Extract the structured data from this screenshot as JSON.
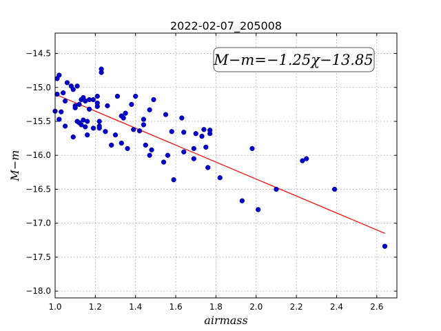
{
  "chart_data": {
    "type": "scatter",
    "title": "2022-02-07_205008",
    "xlabel": "airmass",
    "ylabel": "M−m",
    "xlim": [
      1.0,
      2.7
    ],
    "ylim": [
      -18.1,
      -14.2
    ],
    "x_ticks": [
      1.0,
      1.2,
      1.4,
      1.6,
      1.8,
      2.0,
      2.2,
      2.4,
      2.6
    ],
    "x_tick_labels": [
      "1.0",
      "1.2",
      "1.4",
      "1.6",
      "1.8",
      "2.0",
      "2.2",
      "2.4",
      "2.6"
    ],
    "y_ticks": [
      -14.5,
      -15.0,
      -15.5,
      -16.0,
      -16.5,
      -17.0,
      -17.5,
      -18.0
    ],
    "y_tick_labels": [
      "−14.5",
      "−15.0",
      "−15.5",
      "−16.0",
      "−16.5",
      "−17.0",
      "−17.5",
      "−18.0"
    ],
    "grid": true,
    "annotation": "M−m=−1.25χ−13.85",
    "series": [
      {
        "type": "scatter",
        "color": "#0000cc",
        "points": [
          [
            1.0,
            -15.35
          ],
          [
            1.01,
            -15.1
          ],
          [
            1.02,
            -14.82
          ],
          [
            1.01,
            -14.87
          ],
          [
            1.02,
            -15.47
          ],
          [
            1.03,
            -15.36
          ],
          [
            1.04,
            -15.08
          ],
          [
            1.05,
            -15.2
          ],
          [
            1.05,
            -15.57
          ],
          [
            1.06,
            -14.93
          ],
          [
            1.08,
            -14.98
          ],
          [
            1.09,
            -15.03
          ],
          [
            1.09,
            -15.73
          ],
          [
            1.1,
            -15.27
          ],
          [
            1.1,
            -15.3
          ],
          [
            1.11,
            -14.98
          ],
          [
            1.11,
            -15.5
          ],
          [
            1.12,
            -15.25
          ],
          [
            1.12,
            -15.52
          ],
          [
            1.13,
            -15.55
          ],
          [
            1.13,
            -15.18
          ],
          [
            1.14,
            -15.15
          ],
          [
            1.14,
            -15.48
          ],
          [
            1.15,
            -15.2
          ],
          [
            1.15,
            -15.58
          ],
          [
            1.16,
            -15.5
          ],
          [
            1.16,
            -15.7
          ],
          [
            1.17,
            -15.18
          ],
          [
            1.17,
            -15.32
          ],
          [
            1.19,
            -15.18
          ],
          [
            1.19,
            -15.6
          ],
          [
            1.21,
            -15.13
          ],
          [
            1.21,
            -15.23
          ],
          [
            1.21,
            -15.28
          ],
          [
            1.22,
            -15.5
          ],
          [
            1.22,
            -15.57
          ],
          [
            1.22,
            -15.6
          ],
          [
            1.23,
            -14.73
          ],
          [
            1.23,
            -14.78
          ],
          [
            1.25,
            -15.65
          ],
          [
            1.26,
            -15.27
          ],
          [
            1.28,
            -15.85
          ],
          [
            1.3,
            -15.7
          ],
          [
            1.31,
            -15.13
          ],
          [
            1.33,
            -15.42
          ],
          [
            1.33,
            -15.82
          ],
          [
            1.34,
            -15.45
          ],
          [
            1.35,
            -15.38
          ],
          [
            1.36,
            -15.9
          ],
          [
            1.38,
            -15.25
          ],
          [
            1.39,
            -15.62
          ],
          [
            1.4,
            -15.13
          ],
          [
            1.42,
            -15.64
          ],
          [
            1.44,
            -15.47
          ],
          [
            1.44,
            -15.55
          ],
          [
            1.45,
            -15.85
          ],
          [
            1.47,
            -15.33
          ],
          [
            1.47,
            -16.0
          ],
          [
            1.48,
            -15.92
          ],
          [
            1.49,
            -15.18
          ],
          [
            1.54,
            -16.1
          ],
          [
            1.55,
            -15.4
          ],
          [
            1.56,
            -16.0
          ],
          [
            1.58,
            -15.65
          ],
          [
            1.59,
            -16.36
          ],
          [
            1.63,
            -15.45
          ],
          [
            1.64,
            -15.66
          ],
          [
            1.64,
            -15.95
          ],
          [
            1.69,
            -15.9
          ],
          [
            1.69,
            -16.05
          ],
          [
            1.7,
            -15.68
          ],
          [
            1.73,
            -15.72
          ],
          [
            1.74,
            -15.62
          ],
          [
            1.75,
            -15.88
          ],
          [
            1.76,
            -16.18
          ],
          [
            1.77,
            -15.63
          ],
          [
            1.77,
            -15.68
          ],
          [
            1.82,
            -16.33
          ],
          [
            1.93,
            -16.67
          ],
          [
            1.98,
            -15.9
          ],
          [
            2.01,
            -16.8
          ],
          [
            2.1,
            -16.5
          ],
          [
            2.23,
            -16.08
          ],
          [
            2.25,
            -16.05
          ],
          [
            2.39,
            -16.5
          ],
          [
            2.64,
            -17.34
          ]
        ]
      },
      {
        "type": "line",
        "color": "#ff0000",
        "slope": -1.25,
        "intercept": -13.85,
        "x_range": [
          1.0,
          2.64
        ]
      }
    ]
  }
}
